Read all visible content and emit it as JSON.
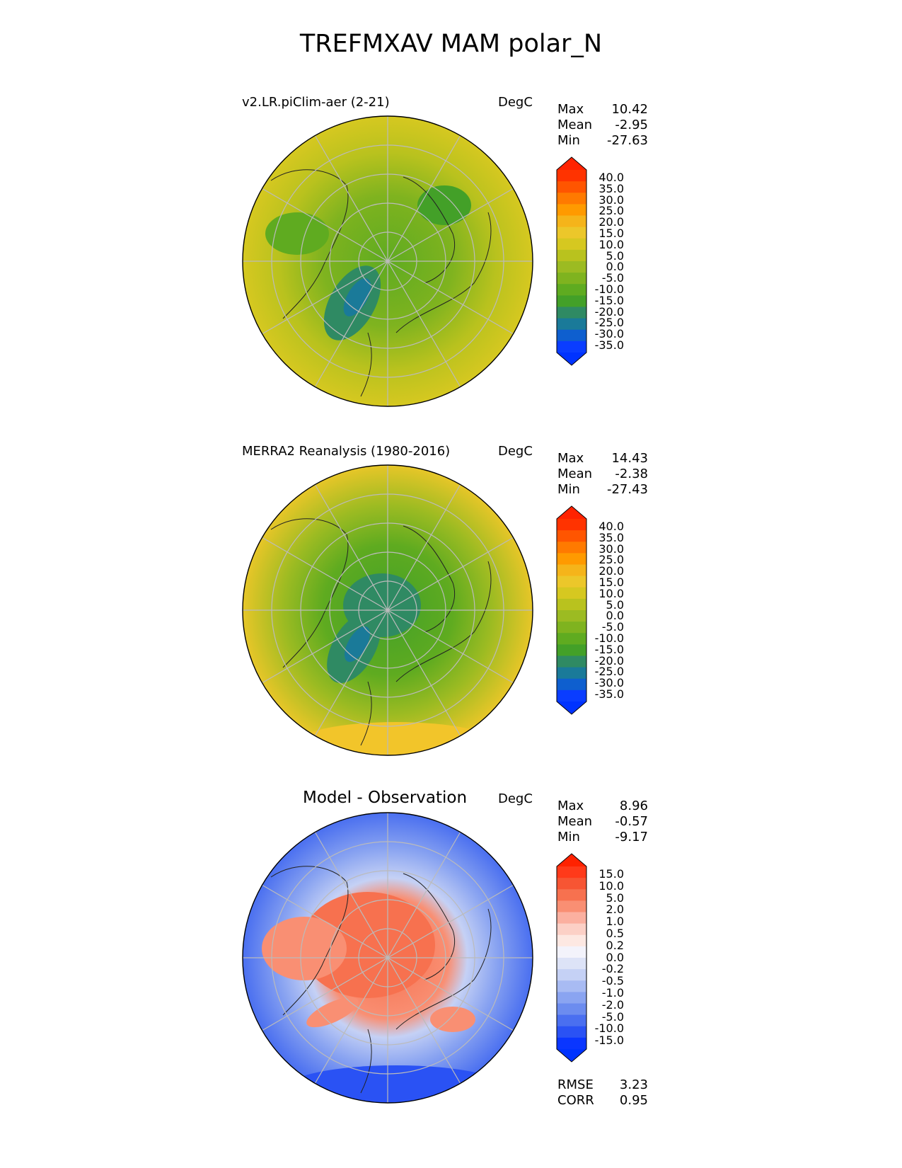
{
  "figure": {
    "title": "TREFMXAV MAM polar_N"
  },
  "panels": [
    {
      "title": "v2.LR.piClim-aer (2-21)",
      "units": "DegC",
      "stats": {
        "max_label": "Max",
        "max": "10.42",
        "mean_label": "Mean",
        "mean": "-2.95",
        "min_label": "Min",
        "min": "-27.63"
      },
      "colorbar": {
        "ticks": [
          "40.0",
          "35.0",
          "30.0",
          "25.0",
          "20.0",
          "15.0",
          "10.0",
          "5.0",
          "0.0",
          "-5.0",
          "-10.0",
          "-15.0",
          "-20.0",
          "-25.0",
          "-30.0",
          "-35.0"
        ],
        "colors": [
          "#ff3300",
          "#ff5500",
          "#ff7a00",
          "#ff9a00",
          "#f5b41a",
          "#ecc72a",
          "#d6c820",
          "#b9c21e",
          "#9cbb22",
          "#7fb31f",
          "#5fab20",
          "#43a028",
          "#2f8a63",
          "#1a7a99",
          "#0e5fcf",
          "#0a3dff"
        ],
        "over_color": "#ff2200",
        "under_color": "#0033ff"
      }
    },
    {
      "title": "MERRA2 Reanalysis (1980-2016)",
      "units": "DegC",
      "stats": {
        "max_label": "Max",
        "max": "14.43",
        "mean_label": "Mean",
        "mean": "-2.38",
        "min_label": "Min",
        "min": "-27.43"
      },
      "colorbar": {
        "ticks": [
          "40.0",
          "35.0",
          "30.0",
          "25.0",
          "20.0",
          "15.0",
          "10.0",
          "5.0",
          "0.0",
          "-5.0",
          "-10.0",
          "-15.0",
          "-20.0",
          "-25.0",
          "-30.0",
          "-35.0"
        ],
        "colors": [
          "#ff3300",
          "#ff5500",
          "#ff7a00",
          "#ff9a00",
          "#f5b41a",
          "#ecc72a",
          "#d6c820",
          "#b9c21e",
          "#9cbb22",
          "#7fb31f",
          "#5fab20",
          "#43a028",
          "#2f8a63",
          "#1a7a99",
          "#0e5fcf",
          "#0a3dff"
        ],
        "over_color": "#ff2200",
        "under_color": "#0033ff"
      }
    },
    {
      "title": "Model - Observation",
      "units": "DegC",
      "stats": {
        "max_label": "Max",
        "max": "8.96",
        "mean_label": "Mean",
        "mean": "-0.57",
        "min_label": "Min",
        "min": "-9.17"
      },
      "colorbar": {
        "ticks": [
          "15.0",
          "10.0",
          "5.0",
          "2.0",
          "1.0",
          "0.5",
          "0.2",
          "0.0",
          "-0.2",
          "-0.5",
          "-1.0",
          "-2.0",
          "-5.0",
          "-10.0",
          "-15.0"
        ],
        "colors": [
          "#ff3a1a",
          "#f75533",
          "#f7714f",
          "#f98f73",
          "#fbb0a0",
          "#fcd0c6",
          "#fde8e2",
          "#f3f3fb",
          "#dde3f7",
          "#c5d1f5",
          "#a8bbf3",
          "#8aa4f1",
          "#6c8cef",
          "#4a6ff0",
          "#2a52f4",
          "#0a36ff"
        ],
        "over_color": "#ff2200",
        "under_color": "#0033ff"
      },
      "scores": {
        "rmse_label": "RMSE",
        "rmse": "3.23",
        "corr_label": "CORR",
        "corr": "0.95"
      }
    }
  ]
}
